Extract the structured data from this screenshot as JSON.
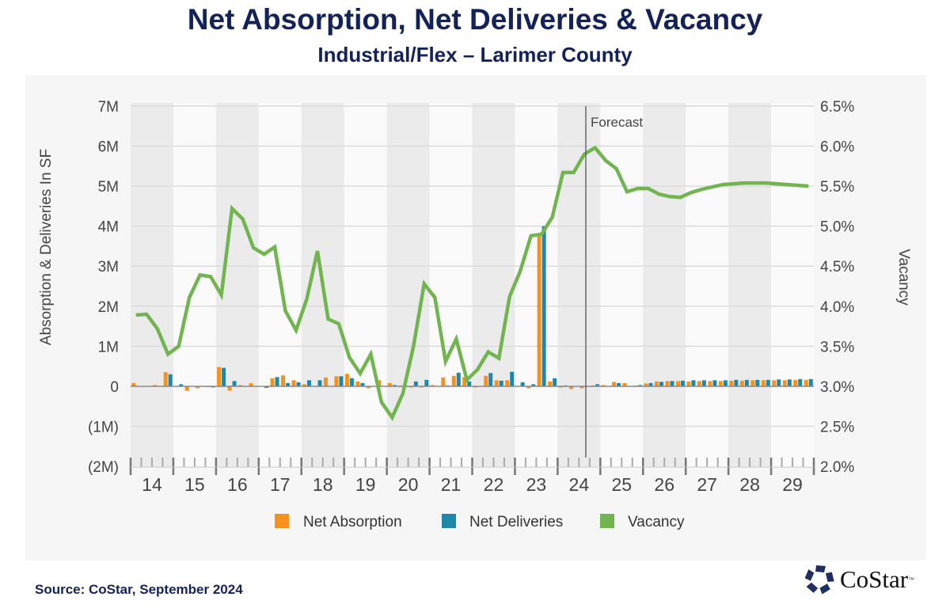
{
  "chart_data": {
    "type": "bar+line",
    "title": "Net Absorption, Net Deliveries & Vacancy",
    "subtitle": "Industrial/Flex – Larimer County",
    "ylabel": "Absorption & Deliveries In SF",
    "y2label": "Vacancy",
    "ylim": [
      -2000000,
      7000000
    ],
    "y2lim": [
      2.0,
      6.5
    ],
    "yticks": [
      "(2M)",
      "(1M)",
      "0",
      "1M",
      "2M",
      "3M",
      "4M",
      "5M",
      "6M",
      "7M"
    ],
    "y2ticks": [
      "2.0%",
      "2.5%",
      "3.0%",
      "3.5%",
      "4.0%",
      "4.5%",
      "5.0%",
      "5.5%",
      "6.0%",
      "6.5%"
    ],
    "xticks": [
      "14",
      "15",
      "16",
      "17",
      "18",
      "19",
      "20",
      "21",
      "22",
      "23",
      "24",
      "25",
      "26",
      "27",
      "28",
      "29"
    ],
    "x_unit": "quarterly, 2014 Q1 – 2029 Q4",
    "forecast_label": "Forecast",
    "forecast_start": "2024 Q3",
    "grid": true,
    "legend_position": "bottom",
    "series": [
      {
        "name": "Net Absorption",
        "type": "bar",
        "color": "#f5921e",
        "unit": "M SF",
        "values": [
          0.08,
          0,
          0.03,
          0.35,
          0.01,
          -0.11,
          -0.05,
          -0.02,
          0.48,
          -0.11,
          0.03,
          0.08,
          -0.01,
          0.2,
          0.27,
          0.15,
          0.05,
          0,
          0.22,
          0.25,
          0.31,
          0.12,
          -0.05,
          0.15,
          0.08,
          0.02,
          -0.03,
          -0.03,
          0.03,
          0.22,
          0.26,
          0.23,
          -0.03,
          0.26,
          0.15,
          0.15,
          0,
          -0.05,
          3.8,
          0.12,
          -0.03,
          -0.07,
          -0.05,
          0.02,
          0.03,
          0.11,
          0.08,
          0.02,
          0.07,
          0.12,
          0.13,
          0.13,
          0.12,
          0.13,
          0.13,
          0.13,
          0.14,
          0.14,
          0.15,
          0.15,
          0.15,
          0.15,
          0.16,
          0.16
        ]
      },
      {
        "name": "Net Deliveries",
        "type": "bar",
        "color": "#1f88a8",
        "unit": "M SF",
        "values": [
          0,
          0,
          0,
          0.3,
          0.05,
          0,
          0.01,
          -0.03,
          0.46,
          0.13,
          0,
          0,
          -0.04,
          0.23,
          0.08,
          0.1,
          0.15,
          0.15,
          0,
          0.25,
          0.2,
          0.08,
          0,
          0,
          0.03,
          0.02,
          0.12,
          0.16,
          0,
          0.02,
          0.34,
          0.12,
          0,
          0.33,
          0.14,
          0.36,
          0.1,
          0.05,
          4.0,
          0.2,
          0.02,
          0,
          0,
          0.05,
          0,
          0.08,
          0,
          0.03,
          0.08,
          0.11,
          0.13,
          0.14,
          0.15,
          0.15,
          0.15,
          0.15,
          0.16,
          0.16,
          0.16,
          0.16,
          0.17,
          0.17,
          0.18,
          0.18
        ]
      },
      {
        "name": "Vacancy",
        "type": "line",
        "color": "#72b550",
        "unit": "%",
        "values": [
          3.89,
          3.9,
          3.72,
          3.4,
          3.5,
          4.11,
          4.39,
          4.37,
          4.14,
          5.22,
          5.09,
          4.73,
          4.65,
          4.74,
          3.94,
          3.7,
          4.09,
          4.69,
          3.84,
          3.78,
          3.36,
          3.16,
          3.4,
          2.8,
          2.61,
          2.91,
          3.5,
          4.28,
          4.11,
          3.31,
          3.59,
          3.08,
          3.21,
          3.43,
          3.35,
          4.12,
          4.44,
          4.88,
          4.9,
          5.11,
          5.67,
          5.67,
          5.9,
          5.98,
          5.82,
          5.72,
          5.43,
          5.47,
          5.47,
          5.4,
          5.37,
          5.36,
          5.42,
          5.46,
          5.49,
          5.52,
          5.53,
          5.54,
          5.54,
          5.54,
          5.53,
          5.52,
          5.51,
          5.5
        ]
      }
    ]
  },
  "footer": {
    "source": "Source: CoStar, September 2024",
    "logo_text": "CoStar",
    "logo_tm": "™"
  }
}
